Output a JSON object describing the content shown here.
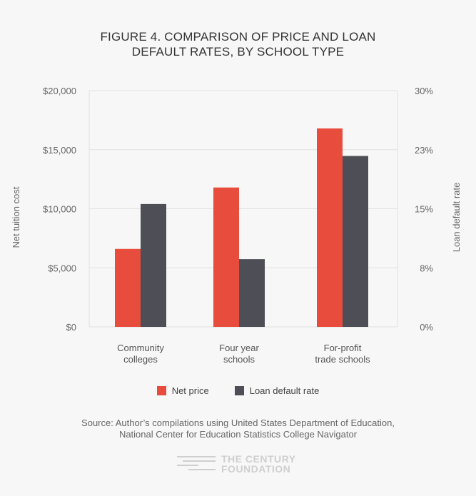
{
  "title_line1": "FIGURE 4. COMPARISON OF PRICE AND LOAN",
  "title_line2": "DEFAULT RATES, BY SCHOOL TYPE",
  "chart_data": {
    "type": "bar",
    "categories": [
      [
        "Community",
        "colleges"
      ],
      [
        "Four year",
        "schools"
      ],
      [
        "For-profit",
        "trade schools"
      ]
    ],
    "series": [
      {
        "name": "Net price",
        "axis": "left",
        "values": [
          6600,
          11800,
          16800
        ],
        "color": "#e84c3d"
      },
      {
        "name": "Loan default rate",
        "axis": "right",
        "values": [
          15.6,
          8.6,
          21.7
        ],
        "color": "#4e4f56"
      }
    ],
    "ylabel": "Net tuition cost",
    "y2label": "Loan default rate",
    "ylim": [
      0,
      20000
    ],
    "y2lim": [
      0,
      30
    ],
    "yticks": [
      "$0",
      "$5,000",
      "$10,000",
      "$15,000",
      "$20,000"
    ],
    "y2ticks": [
      "0%",
      "8%",
      "15%",
      "23%",
      "30%"
    ],
    "grid": true,
    "legend": "bottom"
  },
  "source_line1": "Source: Author’s compilations using United States Department of Education,",
  "source_line2": "National Center for Education Statistics College Navigator",
  "logo_line1": "THE CENTURY",
  "logo_line2": "FOUNDATION"
}
